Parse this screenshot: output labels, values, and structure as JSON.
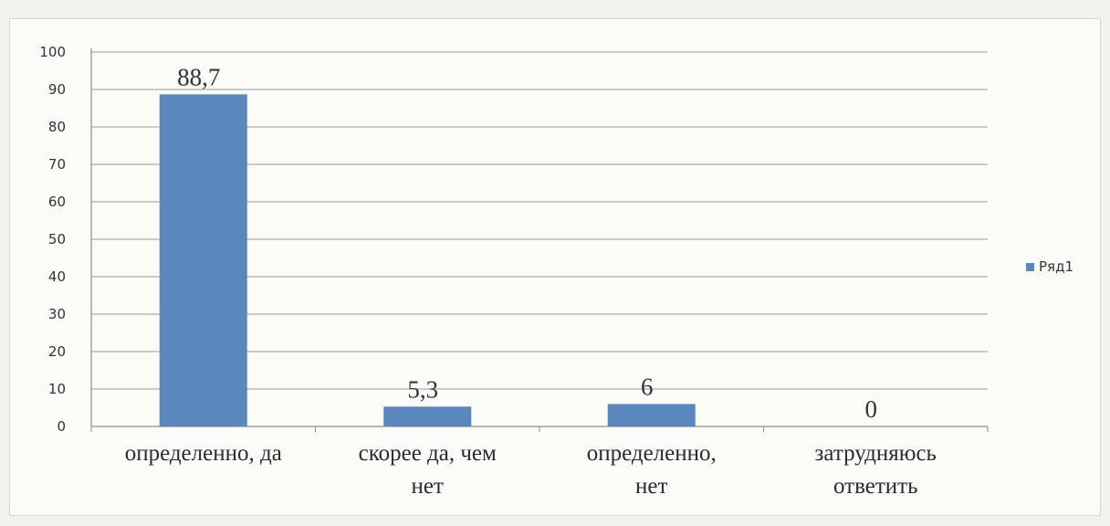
{
  "chart_data": {
    "type": "bar",
    "categories": [
      [
        "определенно, да"
      ],
      [
        "скорее да, чем",
        "нет"
      ],
      [
        "определенно,",
        "нет"
      ],
      [
        "затрудняюсь",
        "ответить"
      ]
    ],
    "series": [
      {
        "name": "Ряд1",
        "values": [
          88.7,
          5.3,
          6,
          0
        ],
        "data_labels": [
          "88,7",
          "5,3",
          "6",
          "0"
        ],
        "color": "#5b87bf"
      }
    ],
    "ylim": [
      0,
      100
    ],
    "yticks": [
      0,
      10,
      20,
      30,
      40,
      50,
      60,
      70,
      80,
      90,
      100
    ],
    "grid": true,
    "legend_position": "right"
  }
}
